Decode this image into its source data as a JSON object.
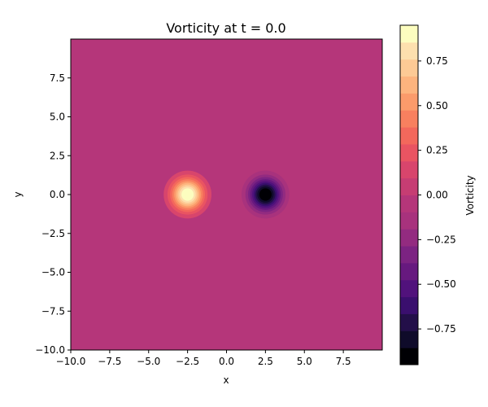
{
  "chart_data": {
    "type": "heatmap",
    "title": "Vorticity at t = 0.0",
    "xlabel": "x",
    "ylabel": "y",
    "xlim": [
      -10,
      10
    ],
    "ylim": [
      -10,
      10
    ],
    "xticks": [
      -10.0,
      -7.5,
      -5.0,
      -2.5,
      0.0,
      2.5,
      5.0,
      7.5
    ],
    "xtick_labels": [
      "−10.0",
      "−7.5",
      "−5.0",
      "−2.5",
      "0.0",
      "2.5",
      "5.0",
      "7.5"
    ],
    "yticks": [
      -10.0,
      -7.5,
      -5.0,
      -2.5,
      0.0,
      2.5,
      5.0,
      7.5
    ],
    "ytick_labels": [
      "−10.0",
      "−7.5",
      "−5.0",
      "−2.5",
      "0.0",
      "2.5",
      "5.0",
      "7.5"
    ],
    "colormap": "magma",
    "background_value": 0.0,
    "vortices": [
      {
        "x": -2.5,
        "y": 0.0,
        "peak": 1.0,
        "core_radius": 1.0,
        "extent": 2.5
      },
      {
        "x": 2.5,
        "y": 0.0,
        "peak": -1.0,
        "core_radius": 1.0,
        "extent": 2.0
      }
    ],
    "colorbar": {
      "label": "Vorticity",
      "range": [
        -0.95,
        0.95
      ],
      "levels": 20,
      "ticks": [
        -0.75,
        -0.5,
        -0.25,
        0.0,
        0.25,
        0.5,
        0.75
      ],
      "tick_labels": [
        "−0.75",
        "−0.50",
        "−0.25",
        "0.00",
        "0.25",
        "0.50",
        "0.75"
      ]
    },
    "colors": {
      "background": "#b5367a",
      "palette": [
        "#000004",
        "#0f0b2a",
        "#230f49",
        "#3a0f6e",
        "#51127c",
        "#67197f",
        "#7c2382",
        "#932b80",
        "#a8327d",
        "#b5367a",
        "#c63d73",
        "#d8456c",
        "#e95462",
        "#f3685c",
        "#f8805f",
        "#fb9b6b",
        "#fdb47e",
        "#fdca95",
        "#fde0ae",
        "#fcfdbf"
      ]
    }
  }
}
